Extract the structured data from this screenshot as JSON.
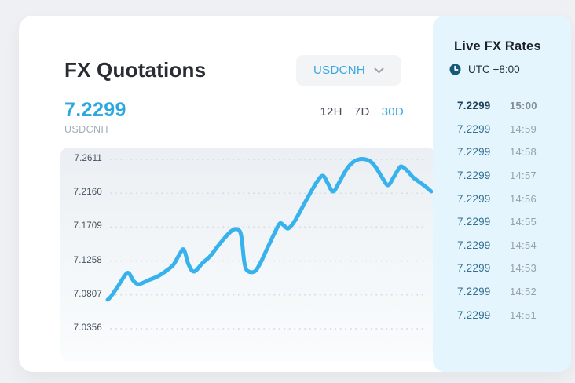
{
  "colors": {
    "page_bg": "#eef0f3",
    "card_bg": "#ffffff",
    "panel_bg": "#e4f5fd",
    "accent_blue": "#35a9e2",
    "line_blue": "#38b2ec",
    "grid_dot": "#d6dce2"
  },
  "header": {
    "title": "FX Quotations"
  },
  "pair_selector": {
    "value": "USDCNH",
    "icon": "chevron-down-icon"
  },
  "quote": {
    "price": "7.2299",
    "pair": "USDCNH"
  },
  "chart": {
    "ranges": [
      {
        "label": "12H",
        "active": false
      },
      {
        "label": "7D",
        "active": false
      },
      {
        "label": "30D",
        "active": true
      }
    ],
    "y_axis_labels": [
      "7.2611",
      "7.2160",
      "7.1709",
      "7.1258",
      "7.0807",
      "7.0356"
    ],
    "line_points": [
      [
        60,
        194
      ],
      [
        64,
        190
      ],
      [
        73,
        177
      ],
      [
        82,
        163
      ],
      [
        87,
        160
      ],
      [
        93,
        170
      ],
      [
        100,
        174
      ],
      [
        112,
        169
      ],
      [
        124,
        164
      ],
      [
        136,
        156
      ],
      [
        144,
        149
      ],
      [
        151,
        137
      ],
      [
        157,
        130
      ],
      [
        163,
        149
      ],
      [
        170,
        158
      ],
      [
        181,
        147
      ],
      [
        190,
        139
      ],
      [
        200,
        126
      ],
      [
        210,
        114
      ],
      [
        218,
        106
      ],
      [
        225,
        104
      ],
      [
        230,
        112
      ],
      [
        234,
        146
      ],
      [
        238,
        157
      ],
      [
        247,
        158
      ],
      [
        254,
        148
      ],
      [
        263,
        129
      ],
      [
        272,
        110
      ],
      [
        279,
        97
      ],
      [
        284,
        99
      ],
      [
        290,
        103
      ],
      [
        298,
        94
      ],
      [
        308,
        76
      ],
      [
        318,
        58
      ],
      [
        327,
        43
      ],
      [
        334,
        36
      ],
      [
        340,
        45
      ],
      [
        347,
        56
      ],
      [
        355,
        44
      ],
      [
        364,
        28
      ],
      [
        372,
        19
      ],
      [
        380,
        15
      ],
      [
        388,
        15
      ],
      [
        395,
        18
      ],
      [
        402,
        26
      ],
      [
        410,
        39
      ],
      [
        417,
        48
      ],
      [
        424,
        38
      ],
      [
        430,
        28
      ],
      [
        434,
        24
      ],
      [
        441,
        29
      ],
      [
        449,
        38
      ],
      [
        457,
        44
      ],
      [
        465,
        50
      ],
      [
        472,
        56
      ]
    ]
  },
  "chart_data": {
    "type": "line",
    "title": "",
    "xlabel": "",
    "ylabel": "",
    "x_ticks": [],
    "y_ticks": [
      "7.2611",
      "7.2160",
      "7.1709",
      "7.1258",
      "7.0807",
      "7.0356"
    ],
    "ylim": [
      7.0356,
      7.2611
    ],
    "grid": "dotted-horizontal",
    "legend": false,
    "series": [
      {
        "name": "USDCNH",
        "values": [
          7.077,
          7.11,
          7.095,
          7.106,
          7.121,
          7.141,
          7.113,
          7.132,
          7.168,
          7.113,
          7.173,
          7.239,
          7.218,
          7.261,
          7.227,
          7.252,
          7.218
        ]
      }
    ]
  },
  "live_panel": {
    "title": "Live FX Rates",
    "timezone": "UTC +8:00",
    "icon": "clock-icon",
    "rates": [
      {
        "value": "7.2299",
        "time": "15:00"
      },
      {
        "value": "7.2299",
        "time": "14:59"
      },
      {
        "value": "7.2299",
        "time": "14:58"
      },
      {
        "value": "7.2299",
        "time": "14:57"
      },
      {
        "value": "7.2299",
        "time": "14:56"
      },
      {
        "value": "7.2299",
        "time": "14:55"
      },
      {
        "value": "7.2299",
        "time": "14:54"
      },
      {
        "value": "7.2299",
        "time": "14:53"
      },
      {
        "value": "7.2299",
        "time": "14:52"
      },
      {
        "value": "7.2299",
        "time": "14:51"
      }
    ]
  }
}
